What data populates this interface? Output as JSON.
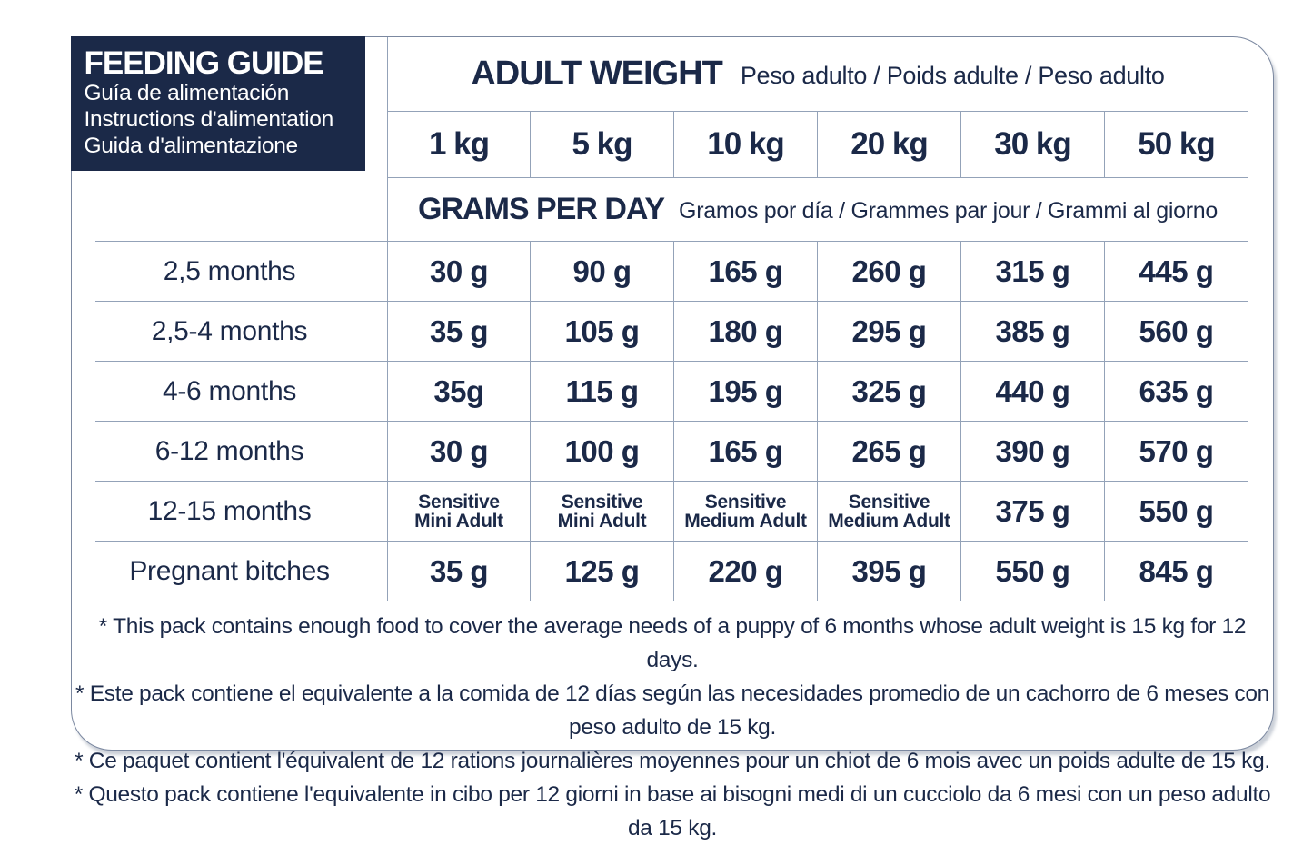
{
  "colors": {
    "navy": "#1b2948",
    "grid_line": "#93a2b8",
    "card_border": "#7b88a0",
    "background": "#ffffff"
  },
  "panel": {
    "title": "FEEDING GUIDE",
    "subtitle_es": "Guía de alimentación",
    "subtitle_fr": "Instructions d'alimentation",
    "subtitle_it": "Guida d'alimentazione"
  },
  "adult_weight": {
    "title": "ADULT WEIGHT",
    "subtitle": "Peso adulto / Poids adulte / Peso adulto",
    "columns": [
      "1 kg",
      "5 kg",
      "10 kg",
      "20 kg",
      "30 kg",
      "50 kg"
    ]
  },
  "grams_per_day": {
    "title": "GRAMS PER DAY",
    "subtitle": "Gramos por día / Grammes par jour / Grammi al giorno"
  },
  "rows": [
    {
      "label": "2,5 months",
      "cells": [
        "30 g",
        "90 g",
        "165 g",
        "260 g",
        "315 g",
        "445 g"
      ]
    },
    {
      "label": "2,5-4 months",
      "cells": [
        "35 g",
        "105 g",
        "180 g",
        "295 g",
        "385 g",
        "560 g"
      ]
    },
    {
      "label": "4-6 months",
      "cells": [
        "35g",
        "115 g",
        "195 g",
        "325 g",
        "440 g",
        "635 g"
      ]
    },
    {
      "label": "6-12 months",
      "cells": [
        "30 g",
        "100 g",
        "165 g",
        "265 g",
        "390 g",
        "570 g"
      ]
    },
    {
      "label": "12-15 months",
      "cells": [
        "Sensitive\nMini Adult",
        "Sensitive\nMini Adult",
        "Sensitive\nMedium Adult",
        "Sensitive\nMedium Adult",
        "375 g",
        "550 g"
      ]
    },
    {
      "label": "Pregnant bitches",
      "cells": [
        "35 g",
        "125 g",
        "220 g",
        "395 g",
        "550 g",
        "845 g"
      ]
    }
  ],
  "footnotes": [
    "* This pack contains enough food to cover the average needs of a puppy of 6 months whose adult weight is 15 kg for 12 days.",
    "* Este pack contiene el equivalente a la comida de 12 días según las necesidades promedio de un cachorro de 6 meses con peso adulto de 15 kg.",
    "* Ce paquet contient l'équivalent de 12 rations journalières moyennes pour un chiot de 6 mois avec un poids adulte de 15 kg.",
    "* Questo pack contiene l'equivalente in cibo per 12 giorni in base ai bisogni medi di un cucciolo da 6 mesi con un peso adulto da 15 kg."
  ]
}
